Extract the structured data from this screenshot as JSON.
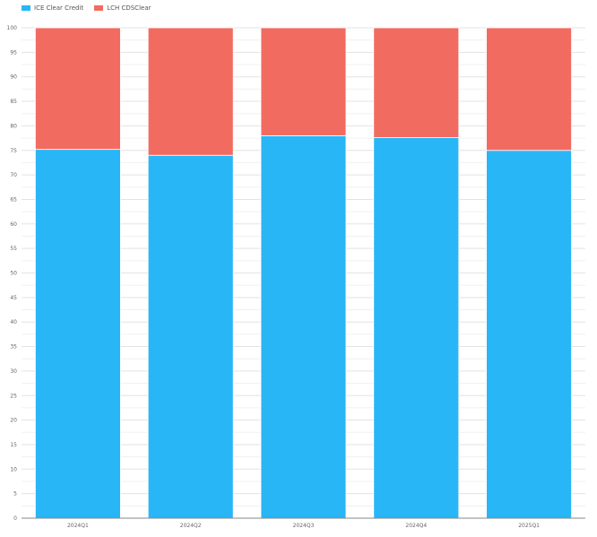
{
  "chart_data": {
    "type": "bar",
    "stacked": true,
    "categories": [
      "2024Q1",
      "2024Q2",
      "2024Q3",
      "2024Q4",
      "2025Q1"
    ],
    "series": [
      {
        "name": "ICE Clear Credit",
        "color": "#29b6f6",
        "values": [
          75.2,
          74.0,
          78.0,
          77.6,
          75.0
        ]
      },
      {
        "name": "LCH CDSClear",
        "color": "#f26b60",
        "values": [
          24.8,
          26.0,
          22.0,
          22.4,
          25.0
        ]
      }
    ],
    "ylim": [
      0,
      100
    ],
    "yticks": [
      0,
      5,
      10,
      15,
      20,
      25,
      30,
      35,
      40,
      45,
      50,
      55,
      60,
      65,
      70,
      75,
      80,
      85,
      90,
      95,
      100
    ],
    "grid": true,
    "legend_position": "top-left",
    "title": "",
    "xlabel": "",
    "ylabel": ""
  }
}
